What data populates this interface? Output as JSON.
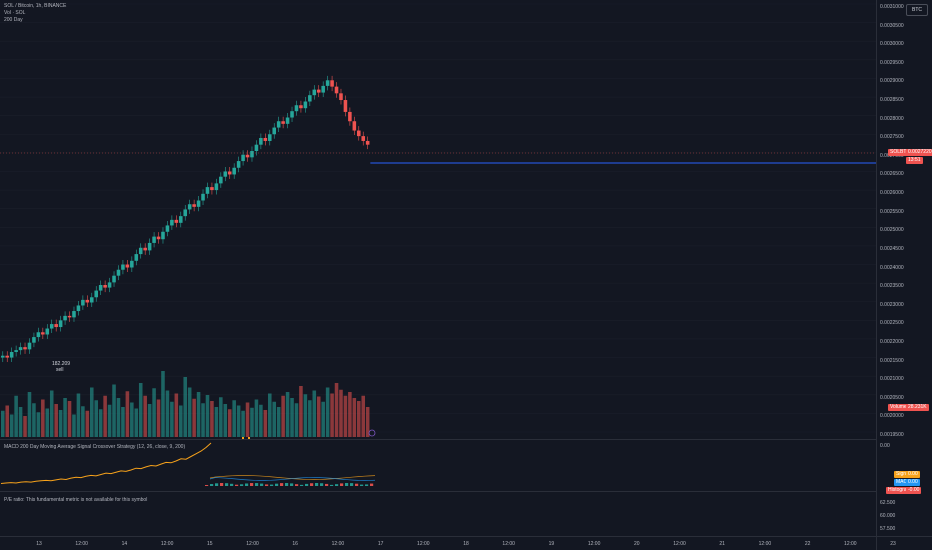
{
  "header": {
    "symbol_line": "SOL / Bitcoin, 1h, BINANCE",
    "indicator_1": "Vol · SOL",
    "indicator_2": "200 Day"
  },
  "currency_button": "BTC",
  "price_axis": {
    "labels": [
      "0.0031000",
      "0.0030500",
      "0.0030000",
      "0.0029500",
      "0.0029000",
      "0.0028500",
      "0.0028000",
      "0.0027500",
      "0.0027000",
      "0.0026500",
      "0.0026000",
      "0.0025500",
      "0.0025000",
      "0.0024500",
      "0.0024000",
      "0.0023500",
      "0.0023000",
      "0.0022500",
      "0.0022000",
      "0.0021500",
      "0.0021000",
      "0.0020500",
      "0.0020000",
      "0.0019500"
    ],
    "current_symbol": "SOLBTC",
    "current_price": "0.0027220",
    "countdown": "13:51",
    "volume_tag_label": "Volume",
    "volume_tag_value": "28.231K"
  },
  "annotation": {
    "value": "182.209",
    "label": "sell"
  },
  "macd_panel": {
    "title": "MACD 200 Day Moving Average Signal Crossover Strategy (12, 26, close, 9, 200)",
    "axis_top": "0.00",
    "signal_label": "Signal",
    "signal_value": "0.00",
    "macd_label": "MACD",
    "macd_value": "0.00",
    "hist_label": "Histogram",
    "hist_value": "-0.00"
  },
  "pe_panel": {
    "message": "P/E ratio: This fundamental metric is not available for this symbol",
    "axis": [
      "62.500",
      "60.000",
      "57.500"
    ]
  },
  "time_axis": {
    "labels": [
      "13",
      "12:00",
      "14",
      "12:00",
      "15",
      "12:00",
      "16",
      "12:00",
      "17",
      "12:00",
      "18",
      "12:00",
      "19",
      "12:00",
      "20",
      "12:00",
      "21",
      "12:00",
      "22",
      "12:00",
      "23"
    ]
  },
  "colors": {
    "background": "#131722",
    "up": "#26a69a",
    "down": "#ef5350",
    "price_line": "#2962ff",
    "macd_line": "#f7a21b"
  },
  "chart_data": {
    "type": "candlestick",
    "title": "SOL / Bitcoin, 1h, BINANCE",
    "price_range": [
      0.00195,
      0.0031
    ],
    "last_price": 0.002722,
    "closes": [
      0.002155,
      0.00215,
      0.002165,
      0.00217,
      0.002178,
      0.002172,
      0.00219,
      0.002205,
      0.002218,
      0.002212,
      0.002228,
      0.00224,
      0.002232,
      0.00225,
      0.002262,
      0.002258,
      0.002275,
      0.00229,
      0.002305,
      0.002298,
      0.002312,
      0.00233,
      0.002345,
      0.002338,
      0.002352,
      0.00237,
      0.002386,
      0.0024,
      0.002392,
      0.00241,
      0.002428,
      0.002445,
      0.002438,
      0.002458,
      0.002475,
      0.002468,
      0.002488,
      0.002505,
      0.00252,
      0.002512,
      0.00253,
      0.002548,
      0.002562,
      0.002555,
      0.002572,
      0.00259,
      0.002608,
      0.0026,
      0.002618,
      0.002636,
      0.00265,
      0.002642,
      0.00266,
      0.002678,
      0.002695,
      0.002688,
      0.002705,
      0.002722,
      0.00274,
      0.002732,
      0.00275,
      0.002768,
      0.002785,
      0.002778,
      0.002795,
      0.002812,
      0.002828,
      0.00282,
      0.002838,
      0.002855,
      0.00287,
      0.002862,
      0.00288,
      0.002895,
      0.002878,
      0.00286,
      0.002842,
      0.00281,
      0.002785,
      0.00276,
      0.002745,
      0.002732,
      0.002722
    ],
    "volumes_relative": [
      0.35,
      0.42,
      0.3,
      0.55,
      0.4,
      0.28,
      0.6,
      0.45,
      0.33,
      0.5,
      0.38,
      0.62,
      0.44,
      0.36,
      0.52,
      0.48,
      0.3,
      0.58,
      0.41,
      0.35,
      0.66,
      0.49,
      0.37,
      0.55,
      0.43,
      0.7,
      0.52,
      0.4,
      0.61,
      0.46,
      0.38,
      0.72,
      0.55,
      0.44,
      0.65,
      0.5,
      0.88,
      0.62,
      0.47,
      0.58,
      0.42,
      0.8,
      0.66,
      0.51,
      0.6,
      0.45,
      0.56,
      0.48,
      0.4,
      0.53,
      0.44,
      0.37,
      0.49,
      0.42,
      0.35,
      0.46,
      0.39,
      0.5,
      0.43,
      0.36,
      0.58,
      0.47,
      0.4,
      0.55,
      0.6,
      0.52,
      0.45,
      0.68,
      0.57,
      0.49,
      0.62,
      0.54,
      0.47,
      0.66,
      0.58,
      0.72,
      0.63,
      0.55,
      0.6,
      0.52,
      0.48,
      0.55,
      0.4
    ],
    "macd_rise": [
      0.1,
      0.11,
      0.12,
      0.11,
      0.13,
      0.14,
      0.13,
      0.15,
      0.16,
      0.17,
      0.16,
      0.18,
      0.2,
      0.19,
      0.22,
      0.24,
      0.23,
      0.26,
      0.28,
      0.27,
      0.3,
      0.33,
      0.32,
      0.35,
      0.38,
      0.37,
      0.4,
      0.44,
      0.43,
      0.47,
      0.5,
      0.49,
      0.53,
      0.57,
      0.56,
      0.6,
      0.65,
      0.64,
      0.7,
      0.76,
      0.82,
      0.9,
      1.0
    ]
  }
}
